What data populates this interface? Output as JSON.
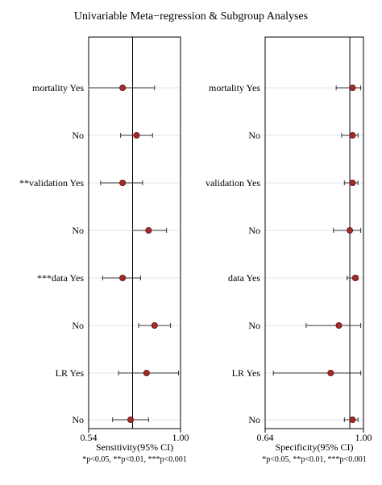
{
  "title": "Univariable Meta−regression & Subgroup Analyses",
  "chart_data": [
    {
      "type": "forest",
      "xlabel": "Sensitivity(95% CI)",
      "xlim": [
        0.54,
        1.0
      ],
      "xticks": [
        "0.54",
        "1.00"
      ],
      "reference_line": 0.76,
      "footnote": "*p<0.05, **p<0.01, ***p<0.001",
      "grid": "horizontal",
      "rows": [
        {
          "label": "mortality Yes",
          "est": 0.71,
          "lo": 0.54,
          "hi": 0.87
        },
        {
          "label": "No",
          "est": 0.78,
          "lo": 0.7,
          "hi": 0.86
        },
        {
          "label": "**validation Yes",
          "est": 0.71,
          "lo": 0.6,
          "hi": 0.81
        },
        {
          "label": "No",
          "est": 0.84,
          "lo": 0.76,
          "hi": 0.93
        },
        {
          "label": "***data Yes",
          "est": 0.71,
          "lo": 0.61,
          "hi": 0.8
        },
        {
          "label": "No",
          "est": 0.87,
          "lo": 0.79,
          "hi": 0.95
        },
        {
          "label": "LR Yes",
          "est": 0.83,
          "lo": 0.69,
          "hi": 0.99
        },
        {
          "label": "No",
          "est": 0.75,
          "lo": 0.66,
          "hi": 0.84
        }
      ]
    },
    {
      "type": "forest",
      "xlabel": "Specificity(95% CI)",
      "xlim": [
        0.64,
        1.0
      ],
      "xticks": [
        "0.64",
        "1.00"
      ],
      "reference_line": 0.95,
      "footnote": "*p<0.05, **p<0.01, ***p<0.001",
      "grid": "horizontal",
      "rows": [
        {
          "label": "mortality Yes",
          "est": 0.96,
          "lo": 0.9,
          "hi": 0.99
        },
        {
          "label": "No",
          "est": 0.96,
          "lo": 0.92,
          "hi": 0.98
        },
        {
          "label": "validation Yes",
          "est": 0.96,
          "lo": 0.93,
          "hi": 0.98
        },
        {
          "label": "No",
          "est": 0.95,
          "lo": 0.89,
          "hi": 0.99
        },
        {
          "label": "data Yes",
          "est": 0.97,
          "lo": 0.94,
          "hi": 0.98
        },
        {
          "label": "No",
          "est": 0.91,
          "lo": 0.79,
          "hi": 0.99
        },
        {
          "label": "LR Yes",
          "est": 0.88,
          "lo": 0.67,
          "hi": 0.99
        },
        {
          "label": "No",
          "est": 0.96,
          "lo": 0.93,
          "hi": 0.98
        }
      ]
    }
  ],
  "colors": {
    "point": "#a52a2a",
    "point_stroke": "#5a1010",
    "ci": "#333333",
    "ref": "#000000",
    "grid": "#dde6ee",
    "axis": "#000000"
  }
}
